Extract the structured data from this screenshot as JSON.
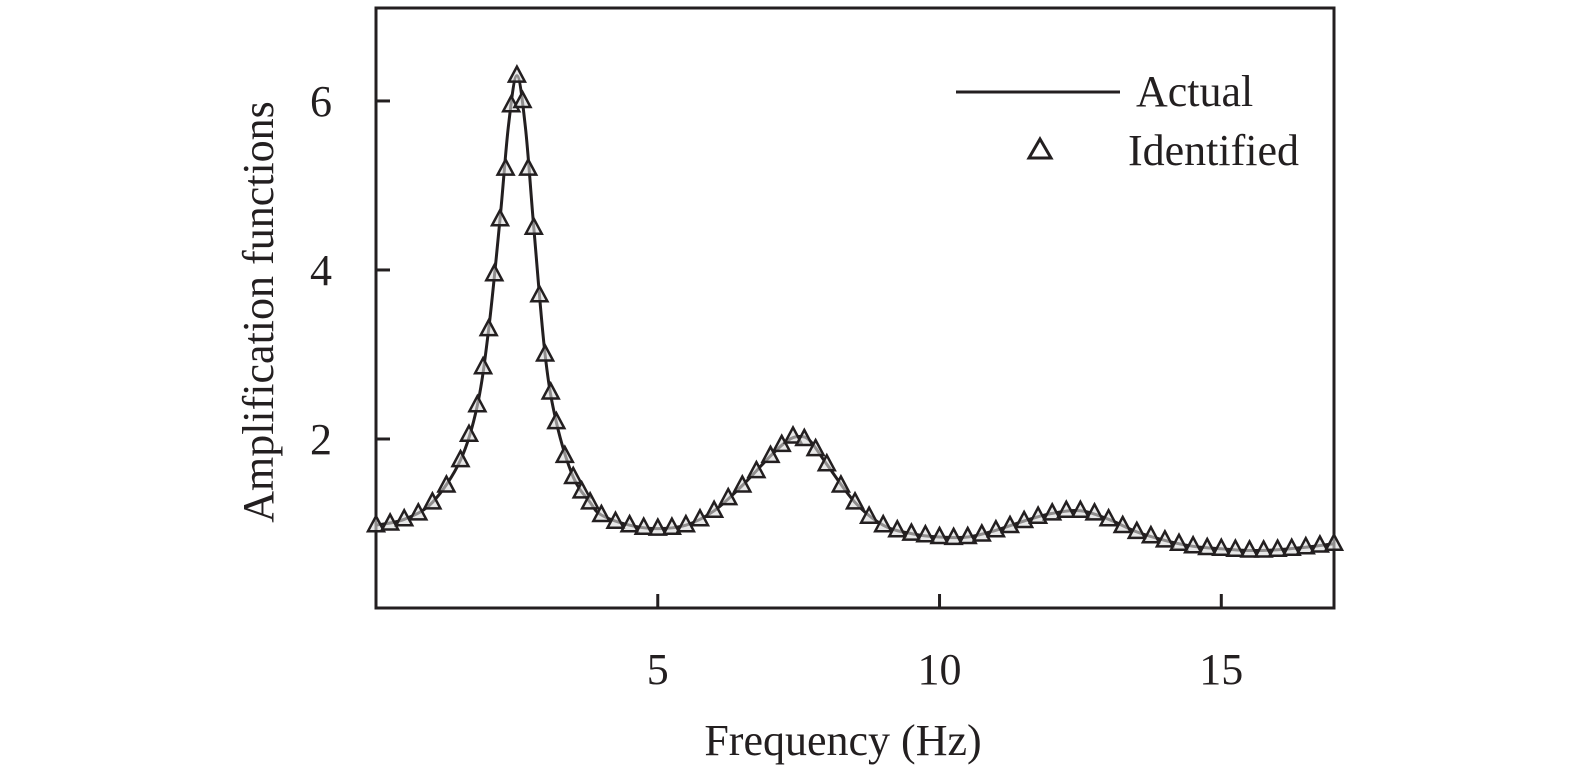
{
  "chart_data": {
    "type": "line",
    "title": "",
    "xlabel": "Frequency (Hz)",
    "ylabel": "Amplification functions",
    "xlim": [
      0,
      17
    ],
    "ylim": [
      0,
      7.1
    ],
    "xticks": [
      5,
      10,
      15
    ],
    "yticks": [
      2,
      4,
      6
    ],
    "grid": false,
    "legend_position": "top-right",
    "colors": {
      "line": "#231f20",
      "marker": "#231f20",
      "marker_fill": "#d8d8d8"
    },
    "series": [
      {
        "name": "Actual",
        "style": "solid-line",
        "x": [
          0.0,
          0.5,
          1.0,
          1.5,
          1.8,
          2.0,
          2.2,
          2.35,
          2.5,
          2.65,
          2.8,
          3.0,
          3.2,
          3.5,
          3.8,
          4.0,
          4.5,
          5.0,
          5.5,
          6.0,
          6.5,
          7.0,
          7.3,
          7.5,
          7.7,
          8.0,
          8.5,
          9.0,
          9.5,
          10.0,
          10.5,
          11.0,
          11.5,
          12.0,
          12.5,
          13.0,
          13.5,
          14.0,
          14.5,
          15.0,
          15.5,
          16.0,
          16.5,
          17.0
        ],
        "y": [
          0.98,
          1.05,
          1.25,
          1.75,
          2.4,
          3.3,
          4.6,
          5.7,
          6.3,
          5.7,
          4.5,
          3.0,
          2.2,
          1.55,
          1.25,
          1.1,
          0.98,
          0.94,
          0.98,
          1.15,
          1.45,
          1.8,
          1.98,
          2.03,
          1.98,
          1.7,
          1.25,
          0.98,
          0.88,
          0.84,
          0.84,
          0.92,
          1.03,
          1.12,
          1.15,
          1.05,
          0.9,
          0.8,
          0.73,
          0.7,
          0.68,
          0.69,
          0.72,
          0.76
        ]
      },
      {
        "name": "Identified",
        "style": "triangle-markers",
        "x": [
          0.0,
          0.25,
          0.5,
          0.75,
          1.0,
          1.25,
          1.5,
          1.65,
          1.8,
          1.9,
          2.0,
          2.1,
          2.2,
          2.3,
          2.4,
          2.5,
          2.6,
          2.7,
          2.8,
          2.9,
          3.0,
          3.1,
          3.2,
          3.35,
          3.5,
          3.65,
          3.8,
          4.0,
          4.25,
          4.5,
          4.75,
          5.0,
          5.25,
          5.5,
          5.75,
          6.0,
          6.25,
          6.5,
          6.75,
          7.0,
          7.2,
          7.4,
          7.6,
          7.8,
          8.0,
          8.25,
          8.5,
          8.75,
          9.0,
          9.25,
          9.5,
          9.75,
          10.0,
          10.25,
          10.5,
          10.75,
          11.0,
          11.25,
          11.5,
          11.75,
          12.0,
          12.25,
          12.5,
          12.75,
          13.0,
          13.25,
          13.5,
          13.75,
          14.0,
          14.25,
          14.5,
          14.75,
          15.0,
          15.25,
          15.5,
          15.75,
          16.0,
          16.25,
          16.5,
          16.75,
          17.0
        ],
        "y": [
          0.98,
          1.0,
          1.05,
          1.12,
          1.25,
          1.45,
          1.75,
          2.05,
          2.4,
          2.85,
          3.3,
          3.95,
          4.6,
          5.2,
          5.95,
          6.3,
          6.0,
          5.2,
          4.5,
          3.7,
          3.0,
          2.55,
          2.2,
          1.8,
          1.55,
          1.38,
          1.25,
          1.1,
          1.02,
          0.98,
          0.95,
          0.94,
          0.95,
          0.98,
          1.05,
          1.15,
          1.3,
          1.45,
          1.62,
          1.8,
          1.93,
          2.03,
          2.0,
          1.88,
          1.7,
          1.45,
          1.25,
          1.08,
          0.98,
          0.92,
          0.88,
          0.86,
          0.84,
          0.83,
          0.84,
          0.87,
          0.92,
          0.97,
          1.03,
          1.08,
          1.12,
          1.15,
          1.15,
          1.12,
          1.05,
          0.97,
          0.9,
          0.85,
          0.8,
          0.76,
          0.73,
          0.71,
          0.7,
          0.69,
          0.68,
          0.68,
          0.69,
          0.7,
          0.72,
          0.74,
          0.76
        ]
      }
    ]
  }
}
